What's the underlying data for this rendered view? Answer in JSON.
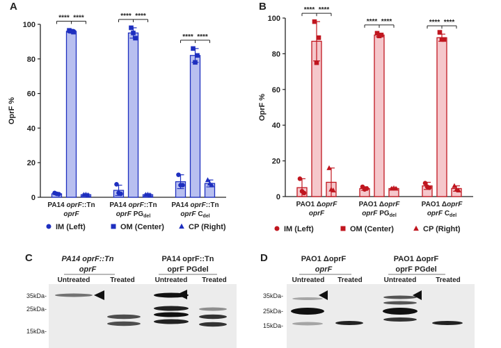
{
  "panels": {
    "A": {
      "letter": "A",
      "color": "#1e2fbf",
      "fill": "#b8bff0"
    },
    "B": {
      "letter": "B",
      "color": "#c0161f",
      "fill": "#f5c7cb"
    },
    "C": {
      "letter": "C"
    },
    "D": {
      "letter": "D"
    }
  },
  "chart_data": [
    {
      "type": "bar",
      "panel": "A",
      "ylabel": "OprF %",
      "ylim": [
        0,
        100
      ],
      "yticks": [
        0,
        20,
        40,
        60,
        80,
        100
      ],
      "groups": [
        {
          "label1": "PA14 oprF::Tn",
          "label2": "oprF",
          "bars": [
            {
              "name": "IM (Left)",
              "value": 2,
              "err": 0.5,
              "points": [
                2.5,
                1.8,
                2.0
              ]
            },
            {
              "name": "OM (Center)",
              "value": 96,
              "err": 1,
              "points": [
                96.5,
                95.5,
                96.0
              ]
            },
            {
              "name": "CP (Right)",
              "value": 1.5,
              "err": 0.5,
              "points": [
                1.5,
                1.3,
                1.6
              ]
            }
          ]
        },
        {
          "label1": "PA14 oprF::Tn",
          "label2": "oprF PGdel",
          "bars": [
            {
              "name": "IM (Left)",
              "value": 4,
              "err": 3,
              "points": [
                7.5,
                2.0,
                2.5
              ]
            },
            {
              "name": "OM (Center)",
              "value": 95,
              "err": 3,
              "points": [
                98,
                92,
                95
              ]
            },
            {
              "name": "CP (Right)",
              "value": 1.5,
              "err": 0.5,
              "points": [
                1.5,
                1.3,
                1.6
              ]
            }
          ]
        },
        {
          "label1": "PA14 oprF::Tn",
          "label2": "oprF Cdel",
          "bars": [
            {
              "name": "IM (Left)",
              "value": 9,
              "err": 4,
              "points": [
                13,
                7,
                7
              ]
            },
            {
              "name": "OM (Center)",
              "value": 82,
              "err": 4,
              "points": [
                86,
                82,
                78
              ]
            },
            {
              "name": "CP (Right)",
              "value": 8,
              "err": 2,
              "points": [
                10,
                7,
                8
              ]
            }
          ]
        }
      ],
      "significance": [
        "****",
        "****"
      ],
      "legend": [
        "IM (Left)",
        "OM (Center)",
        "CP (Right)"
      ],
      "legend_markers": [
        "circle",
        "square",
        "triangle"
      ]
    },
    {
      "type": "bar",
      "panel": "B",
      "ylabel": "OprF %",
      "ylim": [
        0,
        100
      ],
      "yticks": [
        0,
        20,
        40,
        60,
        80,
        100
      ],
      "groups": [
        {
          "label1": "PAO1 ΔoprF",
          "label2": "oprF",
          "bars": [
            {
              "name": "IM (Left)",
              "value": 5,
              "err": 5,
              "points": [
                10,
                2,
                3
              ]
            },
            {
              "name": "OM (Center)",
              "value": 87,
              "err": 11,
              "points": [
                98,
                89,
                75
              ]
            },
            {
              "name": "CP (Right)",
              "value": 8,
              "err": 8,
              "points": [
                16,
                3.5,
                4
              ]
            }
          ]
        },
        {
          "label1": "PAO1 ΔoprF",
          "label2": "oprF PGdel",
          "bars": [
            {
              "name": "IM (Left)",
              "value": 4.5,
              "err": 1,
              "points": [
                5.5,
                4.5,
                4.0
              ]
            },
            {
              "name": "OM (Center)",
              "value": 90.5,
              "err": 1,
              "points": [
                91.5,
                90.5,
                90.0
              ]
            },
            {
              "name": "CP (Right)",
              "value": 4.5,
              "err": 0.5,
              "points": [
                4.5,
                4.5,
                4.8
              ]
            }
          ]
        },
        {
          "label1": "PAO1 ΔoprF",
          "label2": "oprF Cdel",
          "bars": [
            {
              "name": "IM (Left)",
              "value": 6,
              "err": 2,
              "points": [
                7.5,
                5,
                5.5
              ]
            },
            {
              "name": "OM (Center)",
              "value": 89,
              "err": 2,
              "points": [
                92,
                88,
                88
              ]
            },
            {
              "name": "CP (Right)",
              "value": 4.5,
              "err": 1.5,
              "points": [
                6,
                3.5,
                4
              ]
            }
          ]
        }
      ],
      "significance": [
        "****",
        "****"
      ],
      "legend": [
        "IM (Left)",
        "OM (Center)",
        "CP (Right)"
      ],
      "legend_markers": [
        "circle",
        "square",
        "triangle"
      ]
    }
  ],
  "blots": {
    "C": {
      "strain1_line1": "PA14 oprF::Tn",
      "strain1_line2": "oprF",
      "strain2_line1": "PA14 oprF::Tn",
      "strain2_line2": "oprF PGdel",
      "lanes": [
        "Untreated",
        "Treated",
        "Untreated",
        "Treated"
      ],
      "markers": [
        "35kDa-",
        "25kDa-",
        "15kDa-"
      ]
    },
    "D": {
      "strain1_line1": "PAO1  ΔoprF",
      "strain1_line2": "oprF",
      "strain2_line1": "PAO1  ΔoprF",
      "strain2_line2": "oprF PGdel",
      "lanes": [
        "Untreated",
        "Treated",
        "Untreated",
        "Treated"
      ],
      "markers": [
        "35kDa-",
        "25kDa-",
        "15kDa-"
      ]
    }
  }
}
